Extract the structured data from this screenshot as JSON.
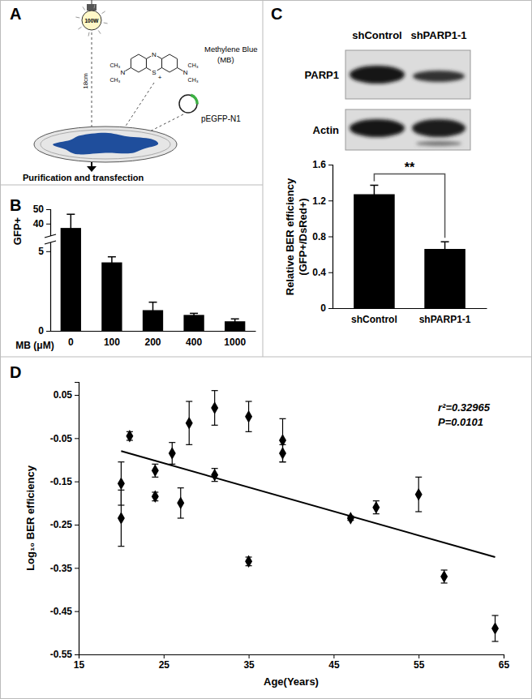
{
  "panels": [
    "A",
    "B",
    "C",
    "D"
  ],
  "diagram": {
    "lamp": "100W",
    "distance": "18cm",
    "compound": "Methylene Blue",
    "compound_abbr": "(MB)",
    "ring_n": "N",
    "ring_s": "S",
    "charge": "+",
    "amine_n": "N",
    "methyl": "CH₃",
    "plasmid": "pEGFP-N1",
    "step": "Purification and transfection"
  },
  "blot": {
    "lanes": [
      "shControl",
      "shPARP1-1"
    ],
    "rows": [
      "PARP1",
      "Actin"
    ]
  },
  "chart_data": [
    {
      "type": "bar",
      "y_label": "GFP+",
      "x_label": "MB (μM)",
      "categories": [
        "0",
        "100",
        "200",
        "400",
        "1000"
      ],
      "values": [
        37,
        4.3,
        1.3,
        1.0,
        0.6
      ],
      "errors": [
        9.5,
        0.35,
        0.5,
        0.1,
        0.15
      ],
      "color": "#000000",
      "ylim": [
        0,
        50
      ],
      "yticks": [
        0,
        5,
        40,
        50
      ],
      "y_break": [
        5.5,
        32
      ]
    },
    {
      "type": "bar",
      "y_label": "Relative BER efficiency",
      "y_label_unit": "(GFP+/DsRed+)",
      "categories": [
        "shControl",
        "shPARP1-1"
      ],
      "values": [
        1.27,
        0.66
      ],
      "errors": [
        0.1,
        0.08
      ],
      "color": "#000000",
      "ylim": [
        0,
        1.6
      ],
      "yticks": [
        0,
        0.4,
        0.8,
        1.2,
        1.6
      ],
      "significance": "**"
    },
    {
      "type": "scatter",
      "x_label": "Age(Years)",
      "y_label": "Log₁₀ BER efficiency",
      "x": [
        20,
        20,
        21,
        24,
        24,
        26,
        27,
        28,
        31,
        31,
        35,
        35,
        39,
        39,
        47,
        50,
        55,
        58,
        64
      ],
      "values": [
        -0.155,
        -0.235,
        -0.045,
        -0.125,
        -0.185,
        -0.085,
        -0.2,
        -0.015,
        0.02,
        -0.135,
        0.0,
        -0.335,
        -0.055,
        -0.085,
        -0.235,
        -0.21,
        -0.18,
        -0.37,
        -0.49
      ],
      "errors": [
        0.05,
        0.065,
        0.01,
        0.015,
        0.01,
        0.025,
        0.035,
        0.05,
        0.04,
        0.015,
        0.035,
        0.01,
        0.05,
        0.02,
        0.005,
        0.015,
        0.04,
        0.015,
        0.03
      ],
      "color": "#000000",
      "marker": "diamond",
      "trendline": {
        "x": [
          20,
          64
        ],
        "values": [
          -0.08,
          -0.325
        ]
      },
      "annotations": [
        "r²=0.32965",
        "P=0.0101"
      ],
      "xlim": [
        15,
        65
      ],
      "xticks": [
        15,
        25,
        35,
        45,
        55,
        65
      ],
      "ylim": [
        -0.55,
        0.08
      ],
      "yticks": [
        -0.55,
        -0.45,
        -0.35,
        -0.25,
        -0.15,
        -0.05,
        0.05
      ]
    }
  ]
}
